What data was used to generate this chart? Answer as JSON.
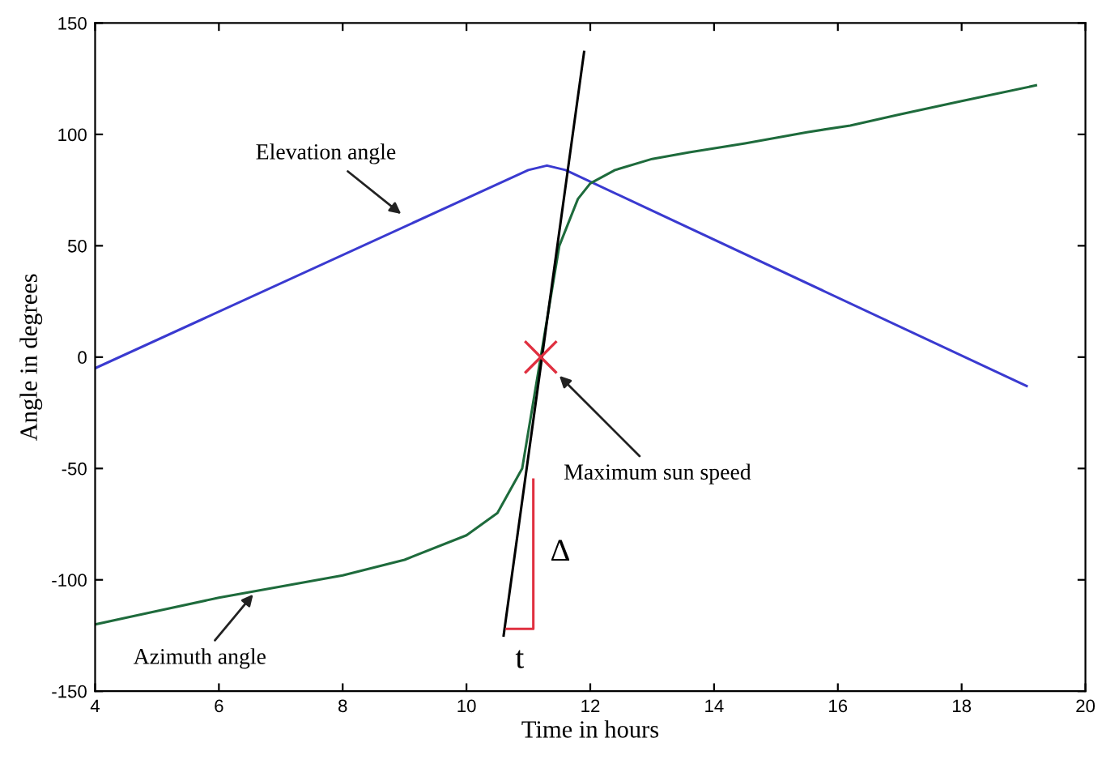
{
  "chart_data": {
    "type": "line",
    "xlabel": "Time in hours",
    "ylabel": "Angle in degrees",
    "xlim": [
      4,
      20
    ],
    "ylim": [
      -150,
      150
    ],
    "xticks": [
      4,
      6,
      8,
      10,
      12,
      14,
      16,
      18,
      20
    ],
    "yticks": [
      -150,
      -100,
      -50,
      0,
      50,
      100,
      150
    ],
    "grid": false,
    "legend": false,
    "series": [
      {
        "color": "#3a3ad0",
        "x": [
          4,
          11.0,
          11.3,
          11.6,
          19.05
        ],
        "values": [
          -5,
          84,
          86,
          84,
          -13
        ]
      },
      {
        "color": "#1e6b3c",
        "x": [
          4,
          5,
          6,
          7,
          8,
          9,
          10,
          10.5,
          10.9,
          11.2,
          11.5,
          11.8,
          12.0,
          12.4,
          13.0,
          13.6,
          14.5,
          15.5,
          16.2,
          17.0,
          18.0,
          19.2
        ],
        "values": [
          -120,
          -114,
          -108,
          -103,
          -98,
          -91,
          -80,
          -70,
          -50,
          0,
          50,
          71,
          78,
          84,
          89,
          92,
          96,
          101,
          104,
          109,
          115,
          122
        ]
      },
      {
        "color": "#000000",
        "x": [
          10.6,
          11.9
        ],
        "values": [
          -125,
          137
        ]
      },
      {
        "color": "#e03040",
        "x": [
          11.08,
          11.08,
          10.65
        ],
        "values": [
          -55,
          -122,
          -122
        ]
      },
      {
        "type": "scatter",
        "marker": "cross",
        "color": "#e03040",
        "x": [
          11.2
        ],
        "values": [
          0
        ]
      }
    ],
    "annotations": [
      {
        "text": "Elevation angle",
        "x": 9.0,
        "y": 63
      },
      {
        "text": "Azimuth angle",
        "x": 6.6,
        "y": -105
      },
      {
        "text": "Maximum sun speed",
        "x": 11.45,
        "y": -7
      },
      {
        "text": "Δ",
        "x": 11.08,
        "y": -88
      },
      {
        "text": "t",
        "x": 10.86,
        "y": -122
      }
    ]
  }
}
